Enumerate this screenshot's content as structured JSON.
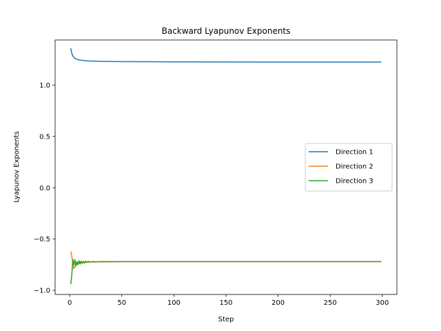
{
  "chart_data": {
    "type": "line",
    "title": "Backward Lyapunov Exponents",
    "xlabel": "Step",
    "ylabel": "Lyapunov Exponents",
    "xlim": [
      -14,
      314
    ],
    "ylim": [
      -1.04,
      1.44
    ],
    "xticks": [
      0,
      50,
      100,
      150,
      200,
      250,
      300
    ],
    "yticks": [
      -1.0,
      -0.5,
      0.0,
      0.5,
      1.0
    ],
    "xtick_labels": [
      "0",
      "50",
      "100",
      "150",
      "200",
      "250",
      "300"
    ],
    "ytick_labels": [
      "−1.0",
      "−0.5",
      "0.0",
      "0.5",
      "1.0"
    ],
    "grid": false,
    "legend_position": "center-right",
    "series": [
      {
        "name": "Direction 1",
        "color": "#1f77b4",
        "x": [
          1,
          2,
          3,
          4,
          5,
          6,
          8,
          10,
          15,
          20,
          30,
          50,
          75,
          100,
          150,
          200,
          250,
          299
        ],
        "y": [
          1.36,
          1.31,
          1.285,
          1.27,
          1.262,
          1.255,
          1.248,
          1.244,
          1.238,
          1.235,
          1.232,
          1.229,
          1.228,
          1.227,
          1.226,
          1.225,
          1.225,
          1.225
        ]
      },
      {
        "name": "Direction 2",
        "color": "#ff7f0e",
        "x": [
          1,
          2,
          3,
          4,
          5,
          6,
          7,
          8,
          9,
          10,
          12,
          14,
          16,
          18,
          20,
          25,
          30,
          40,
          50,
          75,
          100,
          150,
          200,
          250,
          299
        ],
        "y": [
          -0.62,
          -0.67,
          -0.73,
          -0.79,
          -0.77,
          -0.73,
          -0.75,
          -0.74,
          -0.73,
          -0.745,
          -0.725,
          -0.735,
          -0.722,
          -0.728,
          -0.722,
          -0.724,
          -0.721,
          -0.722,
          -0.72,
          -0.72,
          -0.72,
          -0.72,
          -0.72,
          -0.72,
          -0.72
        ]
      },
      {
        "name": "Direction 3",
        "color": "#2ca02c",
        "x": [
          1,
          2,
          3,
          4,
          5,
          6,
          7,
          8,
          9,
          10,
          11,
          12,
          13,
          14,
          15,
          16,
          18,
          20,
          22,
          25,
          30,
          40,
          50,
          75,
          100,
          150,
          200,
          250,
          299
        ],
        "y": [
          -0.94,
          -0.85,
          -0.7,
          -0.75,
          -0.7,
          -0.76,
          -0.72,
          -0.75,
          -0.71,
          -0.74,
          -0.715,
          -0.735,
          -0.718,
          -0.73,
          -0.716,
          -0.727,
          -0.718,
          -0.725,
          -0.719,
          -0.722,
          -0.72,
          -0.721,
          -0.72,
          -0.72,
          -0.72,
          -0.72,
          -0.72,
          -0.72,
          -0.72
        ]
      }
    ]
  }
}
